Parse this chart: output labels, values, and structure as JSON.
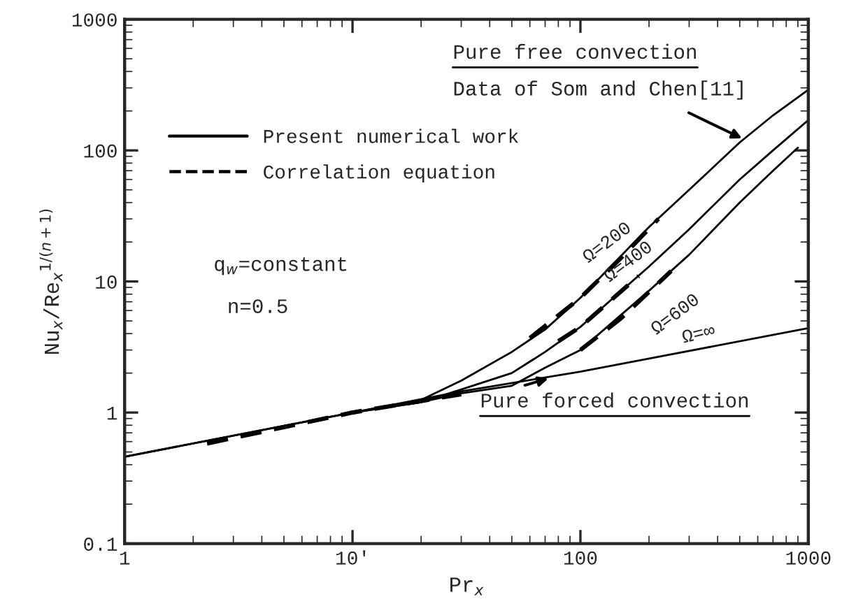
{
  "chart_data": {
    "type": "line",
    "xlabel": "Pr$_{x}$",
    "ylabel": "Nu$_{x}$/Re$_{x}$$^{1/(n+1)}$",
    "log": "xy",
    "xlim": [
      1,
      1000
    ],
    "ylim": [
      0.1,
      1000
    ],
    "xticks": [
      1,
      {
        "value": 10,
        "label": "10'"
      },
      100,
      1000
    ],
    "yticks": [
      0.1,
      1,
      10,
      100,
      1000
    ],
    "grid": false,
    "legend": "left",
    "marker": "none",
    "series": [
      {
        "name": "Present numerical work",
        "color": "#000000",
        "line_style": "solid",
        "x": [
          1,
          10,
          30,
          100,
          1000
        ],
        "values": [
          0.46,
          1.0,
          1.45,
          2.05,
          4.4
        ]
      },
      {
        "color": "#000000",
        "line_style": "solid",
        "x": [
          1,
          10,
          20,
          30,
          50,
          70,
          100,
          200,
          300,
          500,
          700,
          1000
        ],
        "values": [
          0.46,
          1.0,
          1.25,
          1.75,
          2.9,
          4.3,
          7.5,
          26,
          50,
          115,
          185,
          290
        ]
      },
      {
        "color": "#000000",
        "line_style": "solid",
        "x": [
          10,
          20,
          30,
          50,
          70,
          100,
          200,
          300,
          500,
          700,
          1000
        ],
        "values": [
          1.0,
          1.2,
          1.5,
          2.0,
          2.9,
          4.5,
          13,
          25,
          60,
          100,
          170
        ]
      },
      {
        "color": "#000000",
        "line_style": "solid",
        "x": [
          10,
          20,
          30,
          50,
          70,
          100,
          200,
          300,
          500,
          700,
          900
        ],
        "values": [
          1.0,
          1.2,
          1.4,
          1.6,
          2.2,
          3.0,
          8.5,
          16,
          40,
          70,
          105
        ]
      },
      {
        "name": "Correlation equation",
        "color": "#000000",
        "line_style": "dashed",
        "x": [
          2.3,
          10,
          30
        ],
        "values": [
          0.58,
          1.0,
          1.38
        ]
      },
      {
        "color": "#000000",
        "line_style": "dashed",
        "x": [
          60,
          100,
          150,
          220
        ],
        "values": [
          3.7,
          7.5,
          15,
          30
        ]
      },
      {
        "color": "#000000",
        "line_style": "dashed",
        "x": [
          80,
          100,
          180
        ],
        "values": [
          3.5,
          4.5,
          11
        ]
      },
      {
        "color": "#000000",
        "line_style": "dashed",
        "x": [
          100,
          150,
          250
        ],
        "values": [
          3.0,
          5.2,
          12
        ]
      }
    ],
    "annotations": [
      "Pure free convection",
      {
        "text": "Data of Som and Chen[11]",
        "x": 530,
        "y": 120
      },
      {
        "text": "Ω=200",
        "x": 142,
        "y": 14
      },
      {
        "text": "Ω=400",
        "x": 176,
        "y": 10
      },
      {
        "text": "Ω=600",
        "x": 215,
        "y": 9
      },
      {
        "text": "Ω=∞",
        "x": 330,
        "y": 2.9
      },
      "q$_{w}$=constant",
      "n=0.5",
      {
        "text": "Pure forced convection",
        "x": 75,
        "y": 1.85
      }
    ]
  }
}
